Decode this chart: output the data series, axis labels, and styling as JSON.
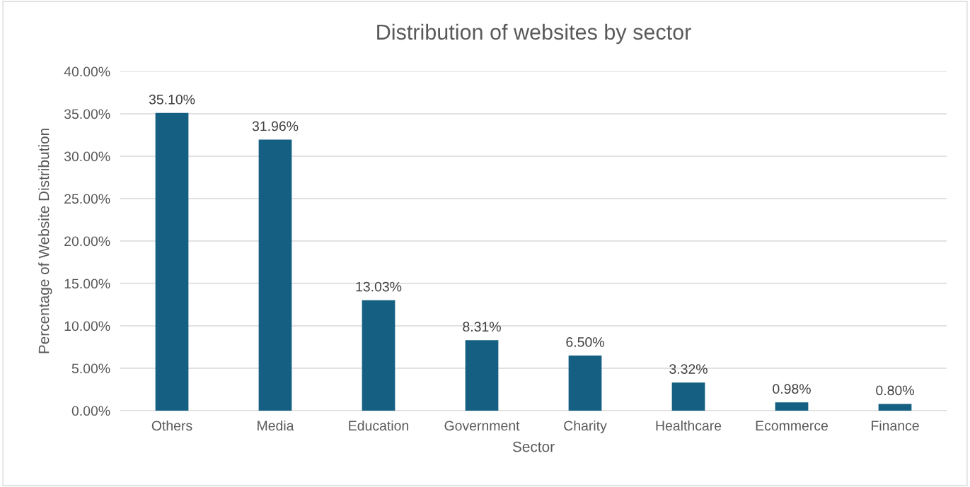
{
  "chart_data": {
    "type": "bar",
    "title": "Distribution of websites by sector",
    "xlabel": "Sector",
    "ylabel": "Percentage of Website Distribution",
    "categories": [
      "Others",
      "Media",
      "Education",
      "Government",
      "Charity",
      "Healthcare",
      "Ecommerce",
      "Finance"
    ],
    "values": [
      35.1,
      31.96,
      13.03,
      8.31,
      6.5,
      3.32,
      0.98,
      0.8
    ],
    "value_labels": [
      "35.10%",
      "31.96%",
      "13.03%",
      "8.31%",
      "6.50%",
      "3.32%",
      "0.98%",
      "0.80%"
    ],
    "color": "#156082",
    "ylim": [
      0,
      40
    ],
    "yticks": [
      {
        "value": 0,
        "label": "0.00%"
      },
      {
        "value": 5,
        "label": "5.00%"
      },
      {
        "value": 10,
        "label": "10.00%"
      },
      {
        "value": 15,
        "label": "15.00%"
      },
      {
        "value": 20,
        "label": "20.00%"
      },
      {
        "value": 25,
        "label": "25.00%"
      },
      {
        "value": 30,
        "label": "30.00%"
      },
      {
        "value": 35,
        "label": "35.00%"
      },
      {
        "value": 40,
        "label": "40.00%"
      }
    ],
    "grid": "y",
    "legend": false
  }
}
